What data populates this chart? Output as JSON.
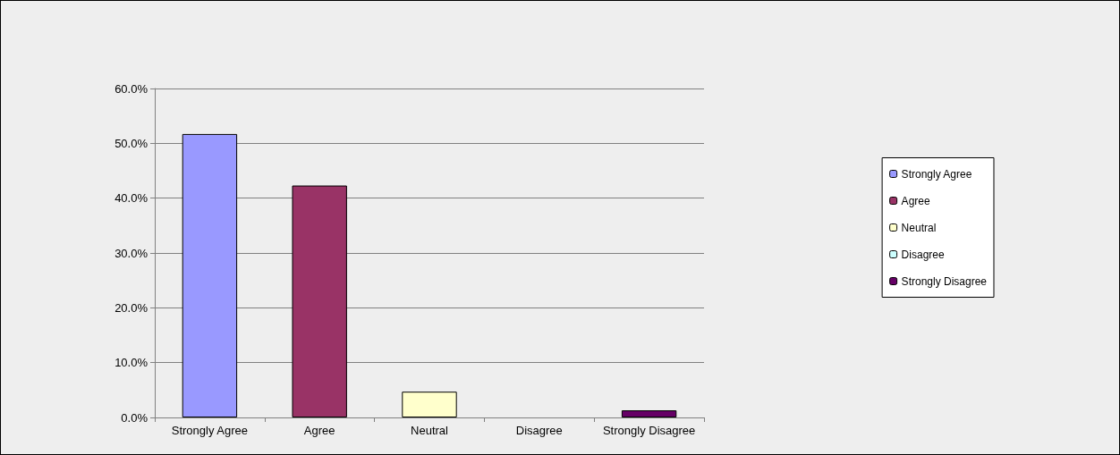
{
  "chart_data": {
    "type": "bar",
    "categories": [
      "Strongly Agree",
      "Agree",
      "Neutral",
      "Disagree",
      "Strongly Disagree"
    ],
    "series": [
      {
        "name": "Strongly Agree",
        "color": "#9999ff",
        "values": [
          51.7,
          null,
          null,
          null,
          null
        ]
      },
      {
        "name": "Agree",
        "color": "#993366",
        "values": [
          null,
          42.3,
          null,
          null,
          null
        ]
      },
      {
        "name": "Neutral",
        "color": "#ffffcc",
        "values": [
          null,
          null,
          4.7,
          null,
          null
        ]
      },
      {
        "name": "Disagree",
        "color": "#ccffff",
        "values": [
          null,
          null,
          null,
          0,
          null
        ]
      },
      {
        "name": "Strongly Disagree",
        "color": "#660066",
        "values": [
          null,
          null,
          null,
          null,
          1.3
        ]
      }
    ],
    "ylim": [
      0,
      60
    ],
    "yticks": [
      {
        "value": 0,
        "label": "0.0%"
      },
      {
        "value": 10,
        "label": "10.0%"
      },
      {
        "value": 20,
        "label": "20.0%"
      },
      {
        "value": 30,
        "label": "30.0%"
      },
      {
        "value": 40,
        "label": "40.0%"
      },
      {
        "value": 50,
        "label": "50.0%"
      },
      {
        "value": 60,
        "label": "60.0%"
      }
    ],
    "grid": "y",
    "legend": "right"
  }
}
